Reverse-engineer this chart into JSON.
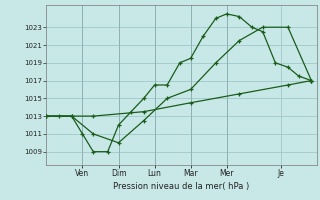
{
  "background_color": "#c8e8e8",
  "grid_color": "#a0c8c8",
  "line_color": "#1a5c1a",
  "ylabel": "Pression niveau de la mer( hPa )",
  "ylim": [
    1007.5,
    1025.5
  ],
  "yticks": [
    1009,
    1011,
    1013,
    1015,
    1017,
    1019,
    1021,
    1023
  ],
  "day_labels": [
    "Ven",
    "Dim",
    "Lun",
    "Mar",
    "Mer",
    "Je"
  ],
  "xlim_days": 7.0,
  "series1_x": [
    0,
    0.35,
    0.7,
    1.0,
    1.3,
    1.7,
    2.0,
    2.35,
    2.7,
    3.0,
    3.35,
    3.7,
    4.0,
    4.35,
    4.7,
    5.0,
    5.35,
    5.7,
    6.0,
    6.35,
    6.7,
    7.0,
    7.35
  ],
  "series1_y": [
    1013,
    1013,
    1013,
    1011,
    1009,
    1009,
    1012,
    1013.5,
    1015,
    1016.5,
    1016.5,
    1019,
    1019.5,
    1022,
    1024,
    1024.5,
    1024.2,
    1023,
    1022.5,
    1019,
    1018.5,
    1017.5,
    1017
  ],
  "series2_x": [
    0,
    0.7,
    1.3,
    2.0,
    2.7,
    3.35,
    4.0,
    4.7,
    5.35,
    6.0,
    6.7,
    7.35
  ],
  "series2_y": [
    1013,
    1013,
    1011,
    1010,
    1012.5,
    1015,
    1016,
    1019,
    1021.5,
    1023,
    1023,
    1017
  ],
  "series3_x": [
    0,
    1.3,
    2.7,
    4.0,
    5.35,
    6.7,
    7.35
  ],
  "series3_y": [
    1013,
    1013,
    1013.5,
    1014.5,
    1015.5,
    1016.5,
    1017
  ]
}
